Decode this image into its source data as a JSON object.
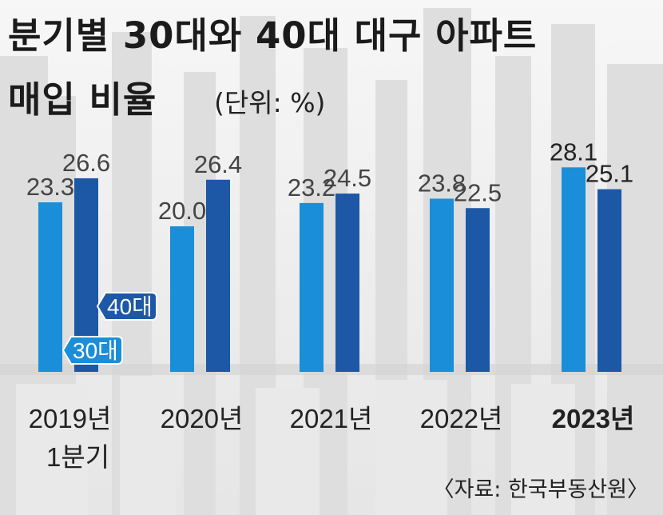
{
  "title_line1": "분기별 30대와 40대 대구 아파트",
  "title_line2": "매입 비율",
  "unit": "(단위: %)",
  "source": "〈자료: 한국부동산원〉",
  "colors": {
    "series_30s": "#1a8ed8",
    "series_40s": "#1c58a6",
    "value_text": "#444444",
    "value_text_last": "#222222",
    "axis_text": "#222222"
  },
  "chart_data": {
    "type": "bar",
    "categories": [
      "2019년 1분기",
      "2020년",
      "2021년",
      "2022년",
      "2023년"
    ],
    "category_label_lines": [
      [
        "2019년",
        "1분기"
      ],
      [
        "2020년"
      ],
      [
        "2021년"
      ],
      [
        "2022년"
      ],
      [
        "2023년"
      ]
    ],
    "series": [
      {
        "name": "30대",
        "values": [
          23.3,
          20.0,
          23.2,
          23.8,
          28.1
        ]
      },
      {
        "name": "40대",
        "values": [
          26.6,
          26.4,
          24.5,
          22.5,
          25.1
        ]
      }
    ],
    "value_labels": [
      [
        "23.3",
        "20.0",
        "23.2",
        "23.8",
        "28.1"
      ],
      [
        "26.6",
        "26.4",
        "24.5",
        "22.5",
        "25.1"
      ]
    ],
    "ylim": [
      0,
      30
    ],
    "grid": false,
    "legend": "in-chart callouts on first category"
  }
}
